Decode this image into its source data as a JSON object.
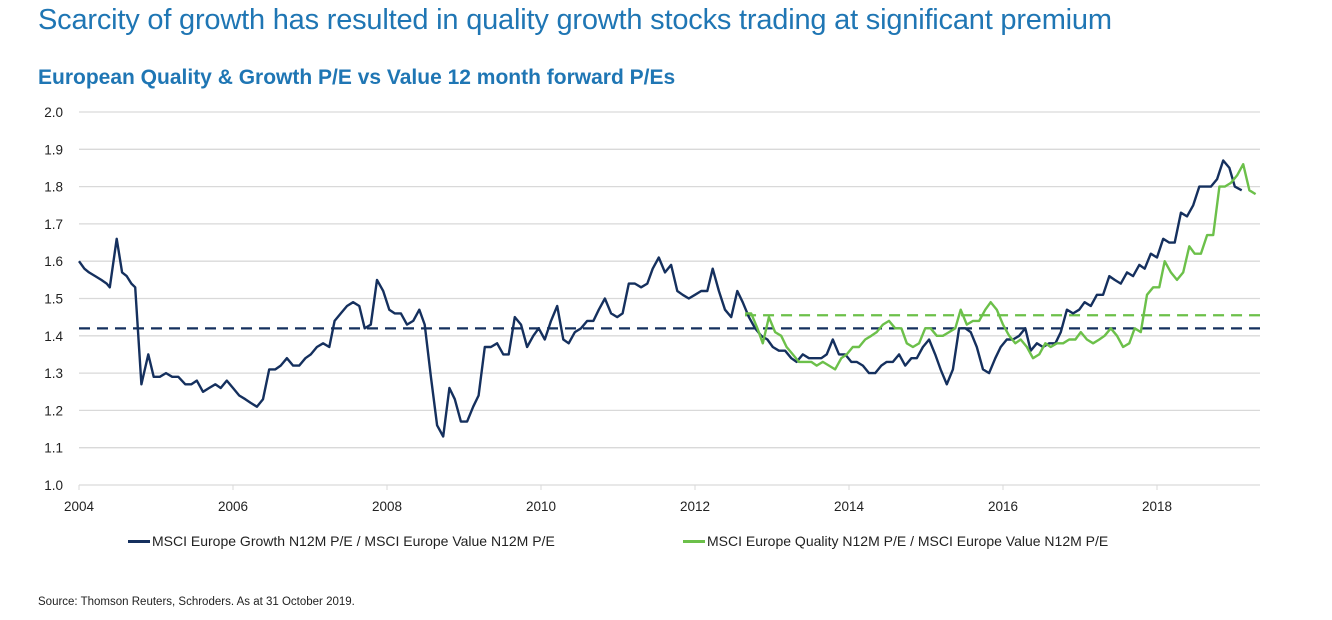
{
  "header": {
    "title": "Scarcity of growth has resulted in quality growth stocks trading at significant premium",
    "subtitle": "European Quality & Growth P/E vs Value 12 month forward P/Es"
  },
  "source": "Source: Thomson Reuters, Schroders. As at 31 October 2019.",
  "chart_data": {
    "type": "line",
    "title": "European Quality & Growth P/E vs Value 12 month forward P/Es",
    "xlabel": "",
    "ylabel": "",
    "xlim": [
      2004,
      2019.4
    ],
    "ylim": [
      1.0,
      2.0
    ],
    "x_ticks": [
      "2004",
      "2006",
      "2008",
      "2010",
      "2012",
      "2014",
      "2016",
      "2018"
    ],
    "y_ticks": [
      "1.0",
      "1.1",
      "1.2",
      "1.3",
      "1.4",
      "1.5",
      "1.6",
      "1.7",
      "1.8",
      "1.9",
      "2.0"
    ],
    "grid": "horizontal",
    "legend_position": "bottom",
    "colors": {
      "growth": "#15305e",
      "quality": "#6cc04a",
      "grid": "#d9d9d9"
    },
    "series": [
      {
        "name": "MSCI Europe Growth N12M P/E / MSCI Europe Value N12M P/E",
        "color": "#15305e",
        "average": 1.42,
        "points": [
          [
            2004.0,
            1.6
          ],
          [
            2004.07,
            1.58
          ],
          [
            2004.13,
            1.57
          ],
          [
            2004.21,
            1.56
          ],
          [
            2004.29,
            1.55
          ],
          [
            2004.36,
            1.54
          ],
          [
            2004.4,
            1.53
          ],
          [
            2004.49,
            1.66
          ],
          [
            2004.56,
            1.57
          ],
          [
            2004.62,
            1.56
          ],
          [
            2004.68,
            1.54
          ],
          [
            2004.73,
            1.53
          ],
          [
            2004.81,
            1.27
          ],
          [
            2004.9,
            1.35
          ],
          [
            2004.97,
            1.29
          ],
          [
            2005.05,
            1.29
          ],
          [
            2005.13,
            1.3
          ],
          [
            2005.21,
            1.29
          ],
          [
            2005.29,
            1.29
          ],
          [
            2005.38,
            1.27
          ],
          [
            2005.46,
            1.27
          ],
          [
            2005.53,
            1.28
          ],
          [
            2005.61,
            1.25
          ],
          [
            2005.69,
            1.26
          ],
          [
            2005.77,
            1.27
          ],
          [
            2005.84,
            1.26
          ],
          [
            2005.92,
            1.28
          ],
          [
            2006.0,
            1.26
          ],
          [
            2006.08,
            1.24
          ],
          [
            2006.16,
            1.23
          ],
          [
            2006.23,
            1.22
          ],
          [
            2006.31,
            1.21
          ],
          [
            2006.39,
            1.23
          ],
          [
            2006.47,
            1.31
          ],
          [
            2006.55,
            1.31
          ],
          [
            2006.62,
            1.32
          ],
          [
            2006.7,
            1.34
          ],
          [
            2006.78,
            1.32
          ],
          [
            2006.86,
            1.32
          ],
          [
            2006.94,
            1.34
          ],
          [
            2007.01,
            1.35
          ],
          [
            2007.09,
            1.37
          ],
          [
            2007.17,
            1.38
          ],
          [
            2007.25,
            1.37
          ],
          [
            2007.32,
            1.44
          ],
          [
            2007.4,
            1.46
          ],
          [
            2007.48,
            1.48
          ],
          [
            2007.56,
            1.49
          ],
          [
            2007.64,
            1.48
          ],
          [
            2007.71,
            1.42
          ],
          [
            2007.79,
            1.43
          ],
          [
            2007.87,
            1.55
          ],
          [
            2007.95,
            1.52
          ],
          [
            2008.03,
            1.47
          ],
          [
            2008.1,
            1.46
          ],
          [
            2008.18,
            1.46
          ],
          [
            2008.26,
            1.43
          ],
          [
            2008.34,
            1.44
          ],
          [
            2008.42,
            1.47
          ],
          [
            2008.49,
            1.43
          ],
          [
            2008.57,
            1.29
          ],
          [
            2008.65,
            1.16
          ],
          [
            2008.73,
            1.13
          ],
          [
            2008.81,
            1.26
          ],
          [
            2008.88,
            1.23
          ],
          [
            2008.96,
            1.17
          ],
          [
            2009.04,
            1.17
          ],
          [
            2009.12,
            1.21
          ],
          [
            2009.19,
            1.24
          ],
          [
            2009.27,
            1.37
          ],
          [
            2009.35,
            1.37
          ],
          [
            2009.43,
            1.38
          ],
          [
            2009.51,
            1.35
          ],
          [
            2009.58,
            1.35
          ],
          [
            2009.66,
            1.45
          ],
          [
            2009.74,
            1.43
          ],
          [
            2009.82,
            1.37
          ],
          [
            2009.9,
            1.4
          ],
          [
            2009.97,
            1.42
          ],
          [
            2010.05,
            1.39
          ],
          [
            2010.13,
            1.44
          ],
          [
            2010.21,
            1.48
          ],
          [
            2010.29,
            1.39
          ],
          [
            2010.36,
            1.38
          ],
          [
            2010.44,
            1.41
          ],
          [
            2010.52,
            1.42
          ],
          [
            2010.6,
            1.44
          ],
          [
            2010.68,
            1.44
          ],
          [
            2010.75,
            1.47
          ],
          [
            2010.83,
            1.5
          ],
          [
            2010.91,
            1.46
          ],
          [
            2010.99,
            1.45
          ],
          [
            2011.06,
            1.46
          ],
          [
            2011.14,
            1.54
          ],
          [
            2011.22,
            1.54
          ],
          [
            2011.3,
            1.53
          ],
          [
            2011.38,
            1.54
          ],
          [
            2011.45,
            1.58
          ],
          [
            2011.53,
            1.61
          ],
          [
            2011.61,
            1.57
          ],
          [
            2011.69,
            1.59
          ],
          [
            2011.77,
            1.52
          ],
          [
            2011.84,
            1.51
          ],
          [
            2011.92,
            1.5
          ],
          [
            2012.0,
            1.51
          ],
          [
            2012.08,
            1.52
          ],
          [
            2012.16,
            1.52
          ],
          [
            2012.23,
            1.58
          ],
          [
            2012.31,
            1.52
          ],
          [
            2012.39,
            1.47
          ],
          [
            2012.47,
            1.45
          ],
          [
            2012.55,
            1.52
          ],
          [
            2012.62,
            1.49
          ],
          [
            2012.7,
            1.45
          ],
          [
            2012.78,
            1.42
          ],
          [
            2012.86,
            1.4
          ],
          [
            2012.94,
            1.39
          ],
          [
            2013.01,
            1.37
          ],
          [
            2013.09,
            1.36
          ],
          [
            2013.17,
            1.36
          ],
          [
            2013.25,
            1.34
          ],
          [
            2013.32,
            1.33
          ],
          [
            2013.4,
            1.35
          ],
          [
            2013.48,
            1.34
          ],
          [
            2013.56,
            1.34
          ],
          [
            2013.64,
            1.34
          ],
          [
            2013.71,
            1.35
          ],
          [
            2013.79,
            1.39
          ],
          [
            2013.87,
            1.35
          ],
          [
            2013.95,
            1.35
          ],
          [
            2014.03,
            1.33
          ],
          [
            2014.1,
            1.33
          ],
          [
            2014.18,
            1.32
          ],
          [
            2014.26,
            1.3
          ],
          [
            2014.34,
            1.3
          ],
          [
            2014.42,
            1.32
          ],
          [
            2014.49,
            1.33
          ],
          [
            2014.57,
            1.33
          ],
          [
            2014.65,
            1.35
          ],
          [
            2014.73,
            1.32
          ],
          [
            2014.81,
            1.34
          ],
          [
            2014.88,
            1.34
          ],
          [
            2014.96,
            1.37
          ],
          [
            2015.04,
            1.39
          ],
          [
            2015.12,
            1.35
          ],
          [
            2015.19,
            1.31
          ],
          [
            2015.27,
            1.27
          ],
          [
            2015.35,
            1.31
          ],
          [
            2015.43,
            1.42
          ],
          [
            2015.51,
            1.42
          ],
          [
            2015.58,
            1.41
          ],
          [
            2015.66,
            1.37
          ],
          [
            2015.74,
            1.31
          ],
          [
            2015.82,
            1.3
          ],
          [
            2015.9,
            1.34
          ],
          [
            2015.97,
            1.37
          ],
          [
            2016.05,
            1.39
          ],
          [
            2016.13,
            1.39
          ],
          [
            2016.21,
            1.4
          ],
          [
            2016.29,
            1.42
          ],
          [
            2016.36,
            1.36
          ],
          [
            2016.44,
            1.38
          ],
          [
            2016.52,
            1.37
          ],
          [
            2016.6,
            1.38
          ],
          [
            2016.68,
            1.38
          ],
          [
            2016.75,
            1.41
          ],
          [
            2016.83,
            1.47
          ],
          [
            2016.91,
            1.46
          ],
          [
            2016.99,
            1.47
          ],
          [
            2017.06,
            1.49
          ],
          [
            2017.14,
            1.48
          ],
          [
            2017.22,
            1.51
          ],
          [
            2017.3,
            1.51
          ],
          [
            2017.38,
            1.56
          ],
          [
            2017.45,
            1.55
          ],
          [
            2017.53,
            1.54
          ],
          [
            2017.61,
            1.57
          ],
          [
            2017.69,
            1.56
          ],
          [
            2017.77,
            1.59
          ],
          [
            2017.84,
            1.58
          ],
          [
            2017.92,
            1.62
          ],
          [
            2018.0,
            1.61
          ],
          [
            2018.08,
            1.66
          ],
          [
            2018.16,
            1.65
          ],
          [
            2018.23,
            1.65
          ],
          [
            2018.31,
            1.73
          ],
          [
            2018.39,
            1.72
          ],
          [
            2018.47,
            1.75
          ],
          [
            2018.55,
            1.8
          ],
          [
            2018.62,
            1.8
          ],
          [
            2018.7,
            1.8
          ],
          [
            2018.78,
            1.82
          ],
          [
            2018.86,
            1.87
          ],
          [
            2018.94,
            1.85
          ],
          [
            2019.01,
            1.8
          ],
          [
            2019.1,
            1.79
          ]
        ]
      },
      {
        "name": "MSCI Europe Quality N12M P/E / MSCI Europe Value N12M P/E",
        "color": "#6cc04a",
        "average": 1.455,
        "points": [
          [
            2012.65,
            1.46
          ],
          [
            2012.73,
            1.46
          ],
          [
            2012.81,
            1.42
          ],
          [
            2012.88,
            1.38
          ],
          [
            2012.96,
            1.45
          ],
          [
            2013.04,
            1.41
          ],
          [
            2013.12,
            1.4
          ],
          [
            2013.19,
            1.37
          ],
          [
            2013.27,
            1.35
          ],
          [
            2013.35,
            1.33
          ],
          [
            2013.43,
            1.33
          ],
          [
            2013.51,
            1.33
          ],
          [
            2013.58,
            1.32
          ],
          [
            2013.66,
            1.33
          ],
          [
            2013.74,
            1.32
          ],
          [
            2013.82,
            1.31
          ],
          [
            2013.9,
            1.34
          ],
          [
            2013.97,
            1.35
          ],
          [
            2014.05,
            1.37
          ],
          [
            2014.13,
            1.37
          ],
          [
            2014.21,
            1.39
          ],
          [
            2014.29,
            1.4
          ],
          [
            2014.36,
            1.41
          ],
          [
            2014.44,
            1.43
          ],
          [
            2014.52,
            1.44
          ],
          [
            2014.6,
            1.42
          ],
          [
            2014.68,
            1.42
          ],
          [
            2014.75,
            1.38
          ],
          [
            2014.83,
            1.37
          ],
          [
            2014.91,
            1.38
          ],
          [
            2014.99,
            1.42
          ],
          [
            2015.06,
            1.42
          ],
          [
            2015.14,
            1.4
          ],
          [
            2015.22,
            1.4
          ],
          [
            2015.3,
            1.41
          ],
          [
            2015.38,
            1.42
          ],
          [
            2015.45,
            1.47
          ],
          [
            2015.53,
            1.43
          ],
          [
            2015.61,
            1.44
          ],
          [
            2015.69,
            1.44
          ],
          [
            2015.77,
            1.47
          ],
          [
            2015.84,
            1.49
          ],
          [
            2015.92,
            1.47
          ],
          [
            2016.0,
            1.43
          ],
          [
            2016.08,
            1.4
          ],
          [
            2016.16,
            1.38
          ],
          [
            2016.23,
            1.39
          ],
          [
            2016.31,
            1.37
          ],
          [
            2016.39,
            1.34
          ],
          [
            2016.47,
            1.35
          ],
          [
            2016.55,
            1.38
          ],
          [
            2016.62,
            1.37
          ],
          [
            2016.7,
            1.38
          ],
          [
            2016.78,
            1.38
          ],
          [
            2016.86,
            1.39
          ],
          [
            2016.94,
            1.39
          ],
          [
            2017.01,
            1.41
          ],
          [
            2017.09,
            1.39
          ],
          [
            2017.17,
            1.38
          ],
          [
            2017.25,
            1.39
          ],
          [
            2017.32,
            1.4
          ],
          [
            2017.4,
            1.42
          ],
          [
            2017.48,
            1.4
          ],
          [
            2017.56,
            1.37
          ],
          [
            2017.64,
            1.38
          ],
          [
            2017.71,
            1.42
          ],
          [
            2017.79,
            1.41
          ],
          [
            2017.87,
            1.51
          ],
          [
            2017.95,
            1.53
          ],
          [
            2018.03,
            1.53
          ],
          [
            2018.1,
            1.6
          ],
          [
            2018.18,
            1.57
          ],
          [
            2018.26,
            1.55
          ],
          [
            2018.34,
            1.57
          ],
          [
            2018.42,
            1.64
          ],
          [
            2018.49,
            1.62
          ],
          [
            2018.57,
            1.62
          ],
          [
            2018.65,
            1.67
          ],
          [
            2018.73,
            1.67
          ],
          [
            2018.81,
            1.8
          ],
          [
            2018.88,
            1.8
          ],
          [
            2018.96,
            1.81
          ],
          [
            2019.04,
            1.83
          ],
          [
            2019.12,
            1.86
          ],
          [
            2019.2,
            1.79
          ],
          [
            2019.28,
            1.78
          ]
        ]
      }
    ]
  }
}
